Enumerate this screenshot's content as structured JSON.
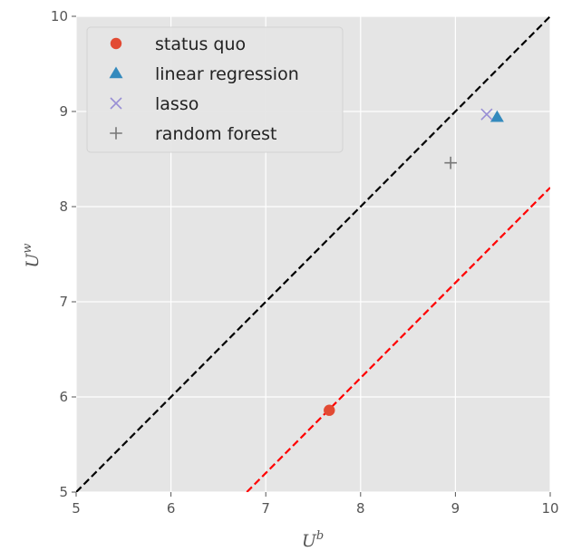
{
  "chart_data": {
    "type": "scatter",
    "title": "",
    "xlabel": {
      "base": "U",
      "sup": "b"
    },
    "ylabel": {
      "base": "U",
      "sup": "w"
    },
    "xlim": [
      5,
      10
    ],
    "ylim": [
      5,
      10
    ],
    "xticks": [
      "5",
      "6",
      "7",
      "8",
      "9",
      "10"
    ],
    "yticks": [
      "5",
      "6",
      "7",
      "8",
      "9",
      "10"
    ],
    "grid": true,
    "legend_position": "top-left",
    "series": [
      {
        "name": "status quo",
        "marker": "circle",
        "color": "#E24A33",
        "points": [
          [
            7.67,
            5.86
          ]
        ]
      },
      {
        "name": "linear regression",
        "marker": "triangle",
        "color": "#348ABD",
        "points": [
          [
            9.44,
            8.94
          ]
        ]
      },
      {
        "name": "lasso",
        "marker": "x",
        "color": "#988ED5",
        "points": [
          [
            9.33,
            8.97
          ]
        ]
      },
      {
        "name": "random forest",
        "marker": "plus",
        "color": "#777777",
        "points": [
          [
            8.95,
            8.46
          ]
        ]
      }
    ],
    "reference_lines": [
      {
        "style": "dashed",
        "color": "#000000",
        "from": [
          5,
          5
        ],
        "to": [
          10,
          10
        ]
      },
      {
        "style": "dashed",
        "color": "#FF0000",
        "from": [
          6.8,
          5
        ],
        "to": [
          10,
          8.2
        ]
      }
    ]
  }
}
